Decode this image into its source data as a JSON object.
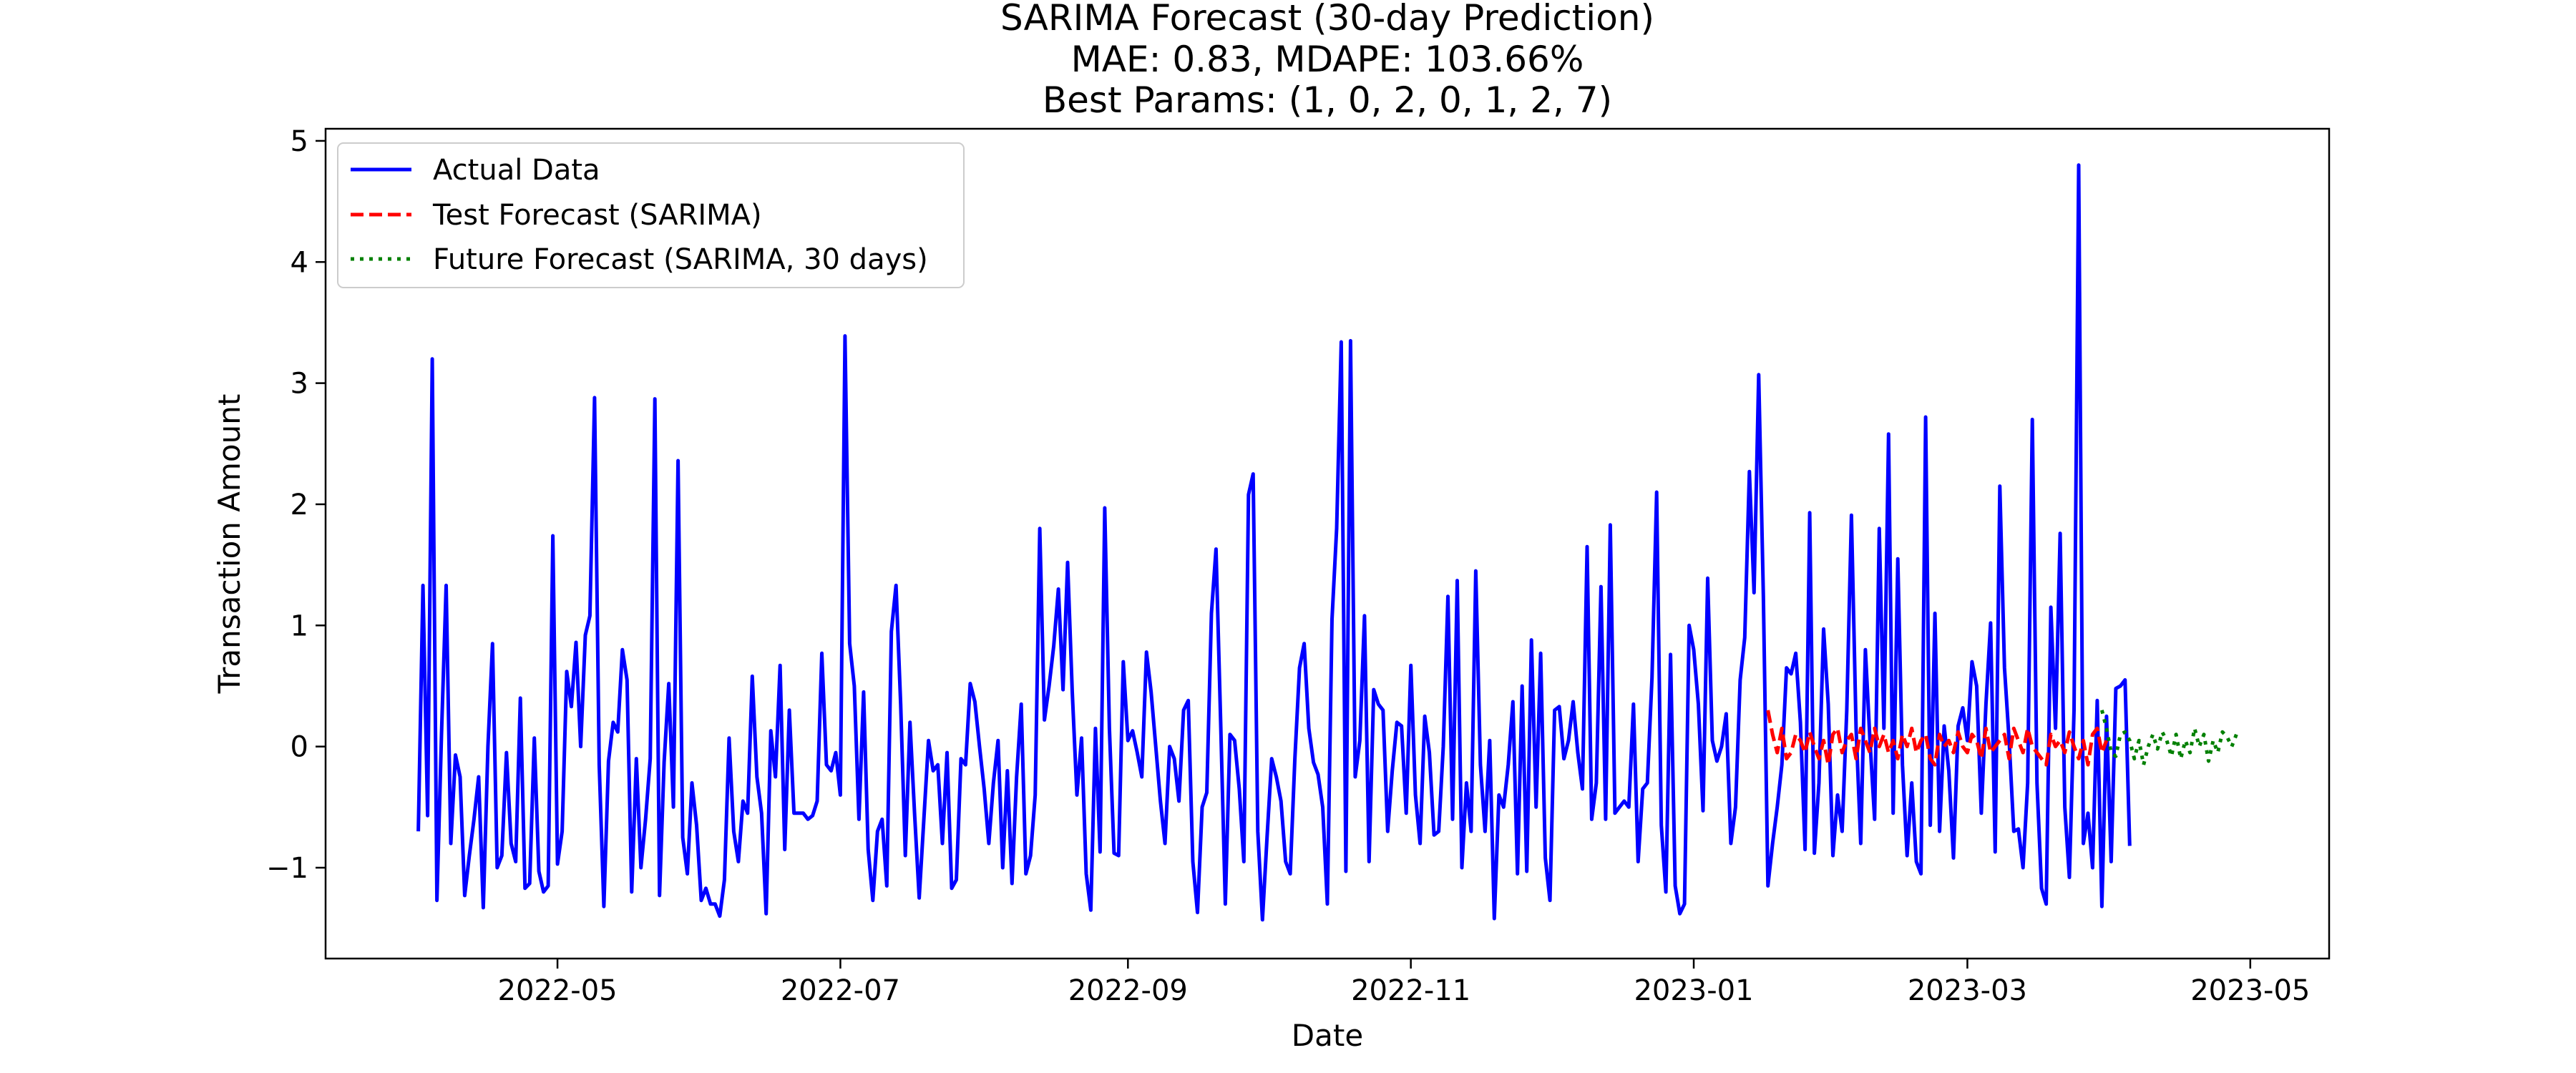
{
  "chart_data": {
    "type": "line",
    "title_lines": [
      "SARIMA Forecast (30-day Prediction)",
      "MAE: 0.83, MDAPE: 103.66%",
      "Best Params: (1, 0, 2, 0, 1, 2, 7)"
    ],
    "xlabel": "Date",
    "ylabel": "Transaction Amount",
    "xlim": [
      "2022-03-12",
      "2023-05-18"
    ],
    "ylim": [
      -1.75,
      5.1
    ],
    "grid": false,
    "legend_position": "top-left",
    "x_ticks": [
      {
        "date": "2022-05-01",
        "label": "2022-05"
      },
      {
        "date": "2022-07-01",
        "label": "2022-07"
      },
      {
        "date": "2022-09-01",
        "label": "2022-09"
      },
      {
        "date": "2022-11-01",
        "label": "2022-11"
      },
      {
        "date": "2023-01-01",
        "label": "2023-01"
      },
      {
        "date": "2023-03-01",
        "label": "2023-03"
      },
      {
        "date": "2023-05-01",
        "label": "2023-05"
      }
    ],
    "y_ticks": [
      {
        "value": -1,
        "label": "−1"
      },
      {
        "value": 0,
        "label": "0"
      },
      {
        "value": 1,
        "label": "1"
      },
      {
        "value": 2,
        "label": "2"
      },
      {
        "value": 3,
        "label": "3"
      },
      {
        "value": 4,
        "label": "4"
      },
      {
        "value": 5,
        "label": "5"
      }
    ],
    "series": [
      {
        "name": "Actual Data",
        "color": "#0000ff",
        "style": "solid",
        "start": "2022-04-01",
        "values": [
          -0.7,
          1.33,
          -0.57,
          3.2,
          -1.27,
          0.1,
          1.33,
          -0.8,
          -0.07,
          -0.25,
          -1.23,
          -0.9,
          -0.6,
          -0.25,
          -1.33,
          0.0,
          0.85,
          -1.0,
          -0.9,
          -0.05,
          -0.8,
          -0.95,
          0.4,
          -1.17,
          -1.13,
          0.07,
          -1.03,
          -1.2,
          -1.15,
          1.74,
          -0.97,
          -0.7,
          0.62,
          0.33,
          0.86,
          0.0,
          0.92,
          1.08,
          2.88,
          -0.15,
          -1.32,
          -0.12,
          0.2,
          0.12,
          0.8,
          0.55,
          -1.2,
          -0.1,
          -1.0,
          -0.6,
          -0.1,
          2.87,
          -1.23,
          -0.13,
          0.52,
          -0.5,
          2.36,
          -0.75,
          -1.05,
          -0.3,
          -0.65,
          -1.27,
          -1.17,
          -1.3,
          -1.3,
          -1.4,
          -1.1,
          0.07,
          -0.7,
          -0.95,
          -0.45,
          -0.55,
          0.58,
          -0.25,
          -0.55,
          -1.38,
          0.13,
          -0.25,
          0.67,
          -0.85,
          0.3,
          -0.55,
          -0.55,
          -0.55,
          -0.6,
          -0.57,
          -0.45,
          0.77,
          -0.15,
          -0.2,
          -0.05,
          -0.4,
          3.39,
          0.85,
          0.5,
          -0.6,
          0.45,
          -0.85,
          -1.27,
          -0.7,
          -0.6,
          -1.15,
          0.95,
          1.33,
          0.35,
          -0.9,
          0.2,
          -0.55,
          -1.25,
          -0.6,
          0.05,
          -0.2,
          -0.15,
          -0.8,
          -0.05,
          -1.17,
          -1.1,
          -0.1,
          -0.15,
          0.52,
          0.37,
          0.0,
          -0.35,
          -0.8,
          -0.3,
          0.05,
          -1.0,
          -0.2,
          -1.13,
          -0.25,
          0.35,
          -1.05,
          -0.9,
          -0.4,
          1.8,
          0.22,
          0.5,
          0.83,
          1.3,
          0.47,
          1.52,
          0.45,
          -0.4,
          0.07,
          -1.05,
          -1.35,
          0.15,
          -0.87,
          1.97,
          0.15,
          -0.88,
          -0.9,
          0.7,
          0.05,
          0.13,
          -0.05,
          -0.25,
          0.78,
          0.45,
          0.0,
          -0.45,
          -0.8,
          0.0,
          -0.1,
          -0.45,
          0.3,
          0.38,
          -0.95,
          -1.37,
          -0.5,
          -0.38,
          1.1,
          1.63,
          0.2,
          -1.3,
          0.1,
          0.05,
          -0.35,
          -0.95,
          2.08,
          2.25,
          -0.7,
          -1.43,
          -0.75,
          -0.1,
          -0.25,
          -0.45,
          -0.95,
          -1.05,
          -0.1,
          0.65,
          0.85,
          0.15,
          -0.13,
          -0.23,
          -0.5,
          -1.3,
          1.05,
          1.8,
          3.34,
          -1.03,
          3.35,
          -0.25,
          0.05,
          1.08,
          -0.95,
          0.47,
          0.35,
          0.3,
          -0.7,
          -0.2,
          0.2,
          0.17,
          -0.55,
          0.67,
          -0.4,
          -0.8,
          0.25,
          -0.05,
          -0.73,
          -0.7,
          0.0,
          1.24,
          -0.6,
          1.37,
          -1.0,
          -0.3,
          -0.7,
          1.45,
          -0.15,
          -0.7,
          0.05,
          -1.42,
          -0.4,
          -0.5,
          -0.15,
          0.37,
          -1.05,
          0.5,
          -1.03,
          0.88,
          -0.5,
          0.77,
          -0.92,
          -1.27,
          0.3,
          0.33,
          -0.1,
          0.05,
          0.37,
          -0.05,
          -0.35,
          1.65,
          -0.6,
          -0.3,
          1.32,
          -0.6,
          1.83,
          -0.55,
          -0.5,
          -0.45,
          -0.5,
          0.35,
          -0.95,
          -0.35,
          -0.3,
          0.57,
          2.1,
          -0.65,
          -1.2,
          0.76,
          -1.15,
          -1.38,
          -1.3,
          1.0,
          0.8,
          0.35,
          -0.53,
          1.39,
          0.05,
          -0.12,
          0.0,
          0.27,
          -0.8,
          -0.5,
          0.55,
          0.9,
          2.27,
          1.27,
          3.07,
          1.25,
          -1.15,
          -0.8,
          -0.5,
          -0.15,
          0.65,
          0.6,
          0.77,
          0.2,
          -0.85,
          1.93,
          -0.88,
          -0.3,
          0.97,
          0.35,
          -0.9,
          -0.4,
          -0.7,
          0.3,
          1.91,
          0.15,
          -0.8,
          0.8,
          0.05,
          -0.6,
          1.8,
          0.15,
          2.58,
          -0.55,
          1.55,
          -0.15,
          -0.9,
          -0.3,
          -0.95,
          -1.05,
          2.72,
          -0.65,
          1.1,
          -0.7,
          0.17,
          -0.2,
          -0.92,
          0.17,
          0.32,
          0.05,
          0.7,
          0.5,
          -0.55,
          0.35,
          1.02,
          -0.87,
          2.15,
          0.65,
          0.05,
          -0.7,
          -0.68,
          -1.0,
          -0.3,
          2.7,
          -0.3,
          -1.17,
          -1.3,
          1.15,
          0.15,
          1.76,
          -0.5,
          -1.08,
          0.3,
          4.8,
          -0.8,
          -0.55,
          -1.0,
          0.38,
          -1.32,
          0.25,
          -0.95,
          0.48,
          0.5,
          0.55,
          -0.82
        ]
      },
      {
        "name": "Test Forecast (SARIMA)",
        "color": "#ff0000",
        "style": "dashed",
        "start": "2023-01-17",
        "values": [
          0.3,
          0.1,
          -0.05,
          0.15,
          -0.1,
          -0.05,
          0.1,
          0.05,
          -0.05,
          0.12,
          0.0,
          -0.1,
          0.05,
          -0.15,
          0.1,
          0.15,
          -0.05,
          0.05,
          0.1,
          -0.1,
          0.15,
          0.05,
          -0.05,
          0.15,
          0.0,
          0.1,
          -0.05,
          0.05,
          -0.1,
          0.1,
          0.0,
          0.15,
          -0.05,
          0.05,
          0.1,
          -0.1,
          -0.15,
          0.1,
          0.0,
          0.05,
          -0.05,
          0.12,
          0.0,
          -0.05,
          0.1,
          0.05,
          -0.1,
          0.15,
          -0.05,
          0.0,
          0.05,
          0.1,
          -0.1,
          0.15,
          0.05,
          -0.05,
          0.15,
          0.0,
          -0.05,
          -0.1,
          -0.15,
          0.1,
          0.0,
          0.05,
          -0.05,
          0.12,
          0.0,
          -0.1,
          0.05,
          -0.15,
          0.1,
          0.15,
          -0.05,
          0.05
        ]
      },
      {
        "name": "Future Forecast (SARIMA, 30 days)",
        "color": "#008000",
        "style": "dotted",
        "start": "2023-03-30",
        "values": [
          0.3,
          0.15,
          -0.05,
          -0.08,
          0.1,
          0.12,
          0.05,
          -0.1,
          0.05,
          -0.15,
          0.0,
          0.1,
          -0.02,
          0.12,
          0.05,
          -0.08,
          0.1,
          -0.1,
          0.05,
          -0.05,
          0.15,
          0.0,
          0.1,
          -0.12,
          0.05,
          -0.05,
          0.12,
          0.08,
          0.0,
          0.1
        ]
      }
    ]
  }
}
